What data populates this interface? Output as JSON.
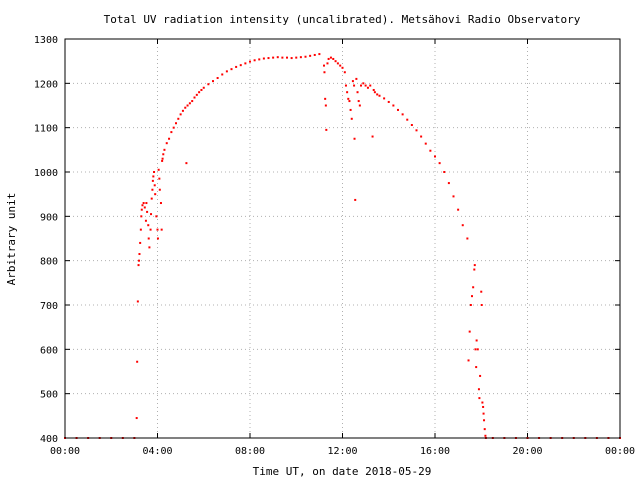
{
  "chart_data": {
    "type": "scatter",
    "title": "Total UV radiation intensity (uncalibrated). Metsähovi Radio Observatory",
    "xlabel": "Time UT, on date 2018-05-29",
    "ylabel": "Arbitrary unit",
    "xlim": [
      0,
      24
    ],
    "ylim": [
      400,
      1300
    ],
    "x_unit": "hours UT",
    "x_ticks": [
      {
        "value": 0,
        "label": "00:00"
      },
      {
        "value": 4,
        "label": "04:00"
      },
      {
        "value": 8,
        "label": "08:00"
      },
      {
        "value": 12,
        "label": "12:00"
      },
      {
        "value": 16,
        "label": "16:00"
      },
      {
        "value": 20,
        "label": "20:00"
      },
      {
        "value": 24,
        "label": "00:00"
      }
    ],
    "y_ticks": [
      {
        "value": 400,
        "label": "400"
      },
      {
        "value": 500,
        "label": "500"
      },
      {
        "value": 600,
        "label": "600"
      },
      {
        "value": 700,
        "label": "700"
      },
      {
        "value": 800,
        "label": "800"
      },
      {
        "value": 900,
        "label": "900"
      },
      {
        "value": 1000,
        "label": "1000"
      },
      {
        "value": 1100,
        "label": "1100"
      },
      {
        "value": 1200,
        "label": "1200"
      },
      {
        "value": 1300,
        "label": "1300"
      }
    ],
    "grid": true,
    "marker_color": "#ff0000",
    "series": [
      {
        "points": [
          [
            0.0,
            400
          ],
          [
            0.5,
            400
          ],
          [
            1.0,
            400
          ],
          [
            1.5,
            400
          ],
          [
            2.0,
            400
          ],
          [
            2.5,
            400
          ],
          [
            3.0,
            400
          ],
          [
            3.1,
            445
          ],
          [
            3.12,
            572
          ],
          [
            3.15,
            708
          ],
          [
            3.18,
            790
          ],
          [
            3.2,
            800
          ],
          [
            3.22,
            815
          ],
          [
            3.25,
            840
          ],
          [
            3.28,
            870
          ],
          [
            3.3,
            900
          ],
          [
            3.32,
            915
          ],
          [
            3.35,
            925
          ],
          [
            3.4,
            930
          ],
          [
            3.45,
            920
          ],
          [
            3.5,
            890
          ],
          [
            3.52,
            930
          ],
          [
            3.55,
            910
          ],
          [
            3.6,
            880
          ],
          [
            3.62,
            850
          ],
          [
            3.65,
            830
          ],
          [
            3.7,
            870
          ],
          [
            3.72,
            905
          ],
          [
            3.75,
            940
          ],
          [
            3.78,
            960
          ],
          [
            3.8,
            980
          ],
          [
            3.82,
            990
          ],
          [
            3.85,
            1000
          ],
          [
            3.88,
            970
          ],
          [
            3.9,
            950
          ],
          [
            3.95,
            900
          ],
          [
            4.0,
            870
          ],
          [
            4.02,
            850
          ],
          [
            4.05,
            1005
          ],
          [
            4.08,
            985
          ],
          [
            4.1,
            960
          ],
          [
            4.15,
            930
          ],
          [
            4.18,
            870
          ],
          [
            4.2,
            1025
          ],
          [
            4.22,
            1030
          ],
          [
            4.25,
            1040
          ],
          [
            4.3,
            1050
          ],
          [
            4.4,
            1065
          ],
          [
            4.5,
            1075
          ],
          [
            4.6,
            1090
          ],
          [
            4.7,
            1100
          ],
          [
            4.8,
            1110
          ],
          [
            4.9,
            1120
          ],
          [
            5.0,
            1130
          ],
          [
            5.1,
            1138
          ],
          [
            5.2,
            1145
          ],
          [
            5.25,
            1020
          ],
          [
            5.3,
            1150
          ],
          [
            5.4,
            1155
          ],
          [
            5.5,
            1160
          ],
          [
            5.6,
            1168
          ],
          [
            5.7,
            1174
          ],
          [
            5.8,
            1180
          ],
          [
            5.9,
            1185
          ],
          [
            6.0,
            1190
          ],
          [
            6.2,
            1198
          ],
          [
            6.4,
            1205
          ],
          [
            6.6,
            1212
          ],
          [
            6.8,
            1220
          ],
          [
            7.0,
            1227
          ],
          [
            7.2,
            1232
          ],
          [
            7.4,
            1237
          ],
          [
            7.6,
            1241
          ],
          [
            7.8,
            1245
          ],
          [
            8.0,
            1249
          ],
          [
            8.2,
            1252
          ],
          [
            8.4,
            1254
          ],
          [
            8.6,
            1256
          ],
          [
            8.8,
            1257
          ],
          [
            9.0,
            1258
          ],
          [
            9.2,
            1259
          ],
          [
            9.4,
            1258
          ],
          [
            9.6,
            1258
          ],
          [
            9.8,
            1257
          ],
          [
            10.0,
            1258
          ],
          [
            10.2,
            1259
          ],
          [
            10.4,
            1260
          ],
          [
            10.6,
            1262
          ],
          [
            10.8,
            1264
          ],
          [
            11.0,
            1266
          ],
          [
            11.2,
            1240
          ],
          [
            11.22,
            1225
          ],
          [
            11.25,
            1165
          ],
          [
            11.28,
            1150
          ],
          [
            11.3,
            1095
          ],
          [
            11.35,
            1245
          ],
          [
            11.4,
            1255
          ],
          [
            11.5,
            1258
          ],
          [
            11.6,
            1255
          ],
          [
            11.7,
            1250
          ],
          [
            11.8,
            1245
          ],
          [
            11.9,
            1240
          ],
          [
            12.0,
            1235
          ],
          [
            12.1,
            1225
          ],
          [
            12.15,
            1195
          ],
          [
            12.2,
            1180
          ],
          [
            12.25,
            1165
          ],
          [
            12.3,
            1160
          ],
          [
            12.35,
            1140
          ],
          [
            12.4,
            1120
          ],
          [
            12.45,
            1205
          ],
          [
            12.5,
            1195
          ],
          [
            12.52,
            1075
          ],
          [
            12.55,
            937
          ],
          [
            12.6,
            1210
          ],
          [
            12.65,
            1180
          ],
          [
            12.7,
            1160
          ],
          [
            12.75,
            1150
          ],
          [
            12.8,
            1195
          ],
          [
            12.9,
            1200
          ],
          [
            13.0,
            1195
          ],
          [
            13.1,
            1190
          ],
          [
            13.2,
            1195
          ],
          [
            13.3,
            1080
          ],
          [
            13.35,
            1185
          ],
          [
            13.4,
            1180
          ],
          [
            13.5,
            1175
          ],
          [
            13.6,
            1172
          ],
          [
            13.8,
            1166
          ],
          [
            14.0,
            1158
          ],
          [
            14.2,
            1150
          ],
          [
            14.4,
            1140
          ],
          [
            14.6,
            1130
          ],
          [
            14.8,
            1118
          ],
          [
            15.0,
            1106
          ],
          [
            15.2,
            1094
          ],
          [
            15.4,
            1080
          ],
          [
            15.6,
            1064
          ],
          [
            15.8,
            1048
          ],
          [
            16.0,
            1035
          ],
          [
            16.2,
            1020
          ],
          [
            16.4,
            1000
          ],
          [
            16.6,
            975
          ],
          [
            16.8,
            945
          ],
          [
            17.0,
            915
          ],
          [
            17.2,
            880
          ],
          [
            17.4,
            850
          ],
          [
            17.45,
            575
          ],
          [
            17.5,
            640
          ],
          [
            17.55,
            700
          ],
          [
            17.6,
            720
          ],
          [
            17.65,
            740
          ],
          [
            17.7,
            780
          ],
          [
            17.72,
            790
          ],
          [
            17.75,
            600
          ],
          [
            17.78,
            560
          ],
          [
            17.8,
            620
          ],
          [
            17.85,
            600
          ],
          [
            17.9,
            510
          ],
          [
            17.92,
            490
          ],
          [
            17.95,
            540
          ],
          [
            18.0,
            730
          ],
          [
            18.02,
            700
          ],
          [
            18.05,
            480
          ],
          [
            18.08,
            470
          ],
          [
            18.1,
            455
          ],
          [
            18.12,
            440
          ],
          [
            18.15,
            420
          ],
          [
            18.18,
            405
          ],
          [
            18.2,
            400
          ],
          [
            18.5,
            400
          ],
          [
            19.0,
            400
          ],
          [
            19.5,
            400
          ],
          [
            20.0,
            400
          ],
          [
            20.5,
            400
          ],
          [
            21.0,
            400
          ],
          [
            21.5,
            400
          ],
          [
            22.0,
            400
          ],
          [
            22.5,
            400
          ],
          [
            23.0,
            400
          ],
          [
            23.5,
            400
          ],
          [
            24.0,
            400
          ]
        ]
      }
    ]
  }
}
